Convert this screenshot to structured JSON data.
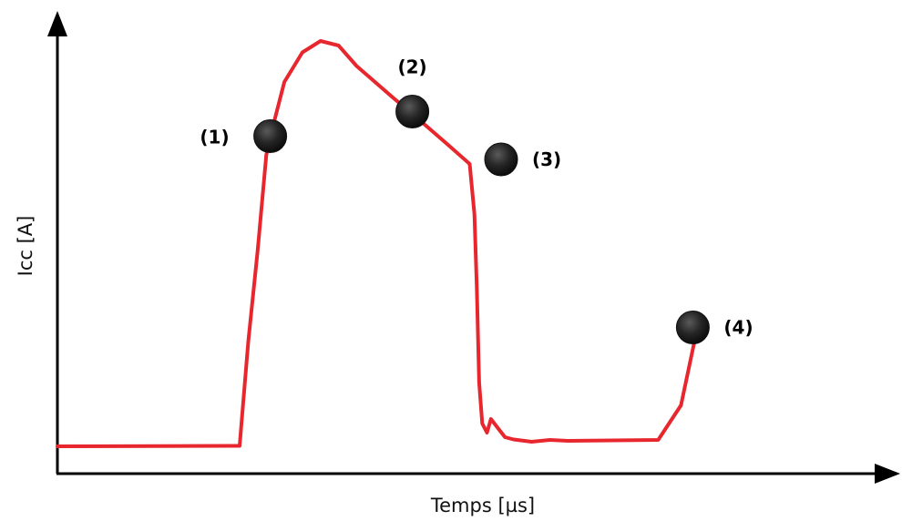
{
  "chart_data": {
    "type": "line",
    "title": "",
    "xlabel": "Temps [µs]",
    "ylabel": "Icc [A]",
    "grid": false,
    "legend": "none",
    "axis_ticks": false,
    "xlim": [
      0,
      100
    ],
    "ylim": [
      0,
      100
    ],
    "series": [
      {
        "color": "#e8262e",
        "x": [
          0,
          23.2,
          24.3,
          25.5,
          26.6,
          27.7,
          28.9,
          31.2,
          33.5,
          35.8,
          38.1,
          39.3,
          42.7,
          46.2,
          49.6,
          52.5,
          53.1,
          53.4,
          53.7,
          54.1,
          54.7,
          55.2,
          56.4,
          57.0,
          58.1,
          60.4,
          62.7,
          65.0,
          70.8,
          76.5,
          79.4,
          80.5,
          81.6
        ],
        "y": [
          6.0,
          6.1,
          29.0,
          49.0,
          70.0,
          78.0,
          86.0,
          92.5,
          95.0,
          94.0,
          89.5,
          87.7,
          82.6,
          77.5,
          72.4,
          68.0,
          57.0,
          41.0,
          20.0,
          11.0,
          9.0,
          12.0,
          9.3,
          8.0,
          7.5,
          7.0,
          7.4,
          7.2,
          7.3,
          7.4,
          15.0,
          24.0,
          33.0
        ]
      }
    ],
    "points": [
      {
        "label": "(1)",
        "x": 27.1,
        "y": 74.1
      },
      {
        "label": "(2)",
        "x": 45.2,
        "y": 79.5
      },
      {
        "label": "(3)",
        "x": 56.5,
        "y": 69.0
      },
      {
        "label": "(4)",
        "x": 80.9,
        "y": 32.1
      }
    ],
    "colors": {
      "axis": "#000000",
      "curve": "#e8262e",
      "marker": "#252525"
    }
  }
}
